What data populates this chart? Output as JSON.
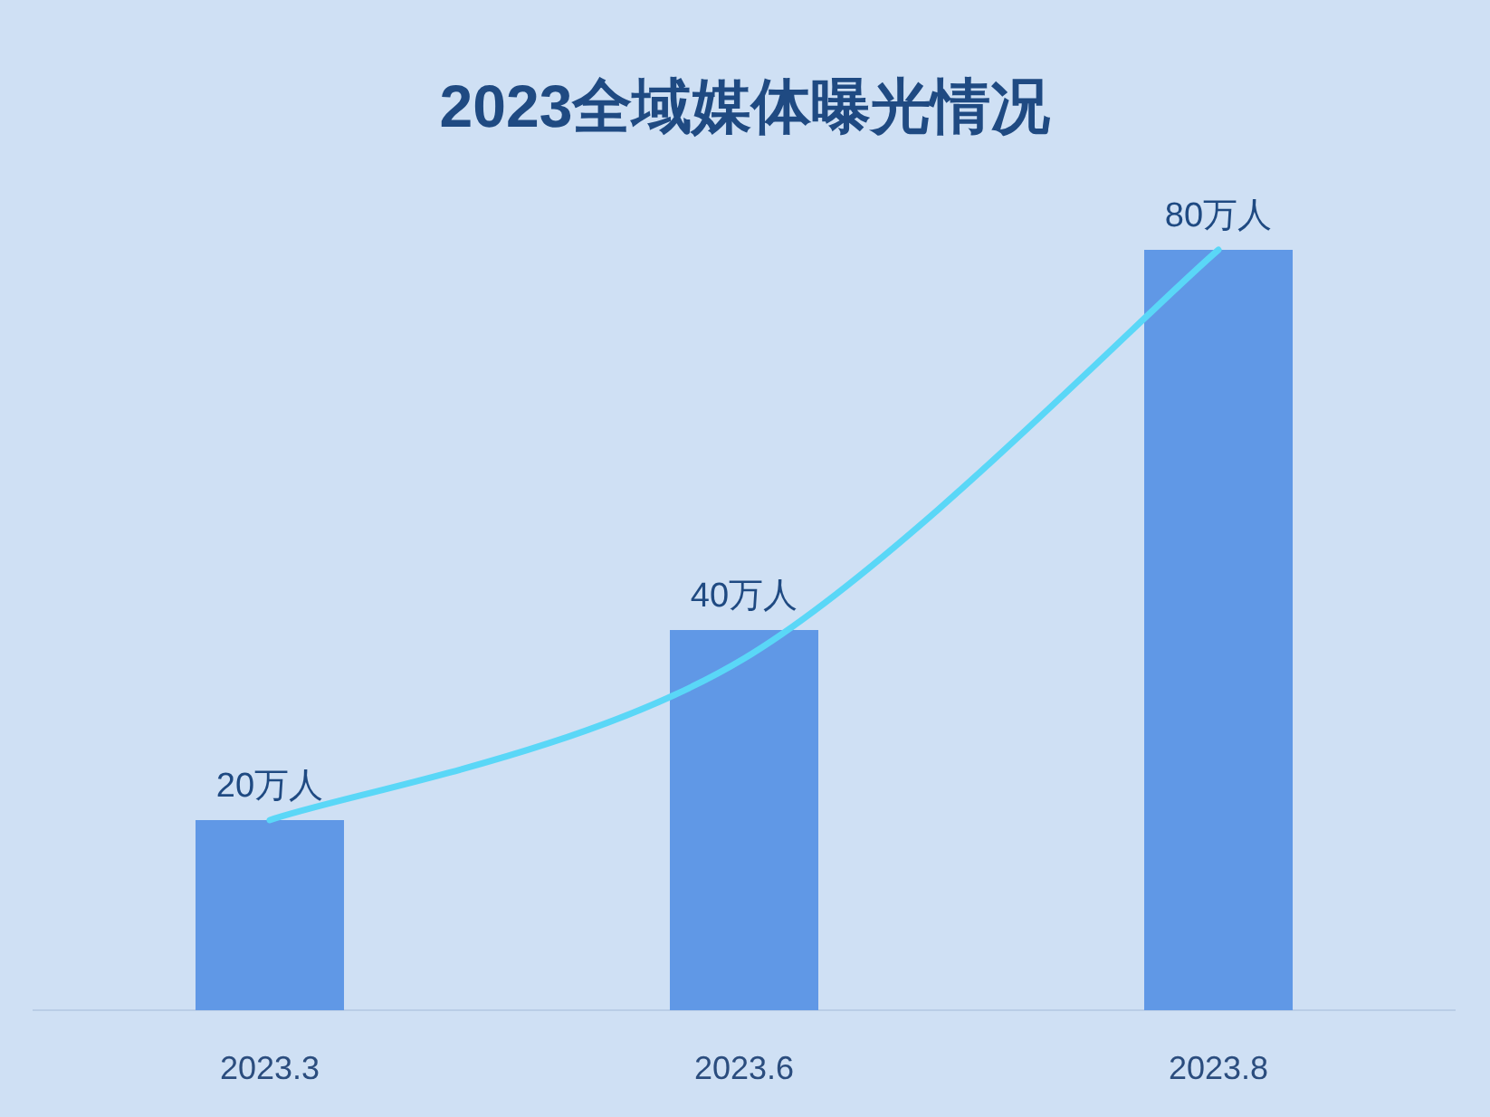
{
  "chart_data": {
    "type": "bar",
    "title": "2023全域媒体曝光情况",
    "categories": [
      "2023.3",
      "2023.6",
      "2023.8"
    ],
    "ylim": [
      0,
      80
    ],
    "tick_labels": "x",
    "grid": false,
    "series": [
      {
        "color": "#6098e6",
        "values": [
          20,
          40,
          80
        ],
        "value_labels": [
          "20万人",
          "40万人",
          "80万人"
        ]
      },
      {
        "type": "line",
        "color": "#5ad7f7",
        "values": [
          20,
          37,
          80
        ],
        "marker": "none"
      }
    ]
  }
}
